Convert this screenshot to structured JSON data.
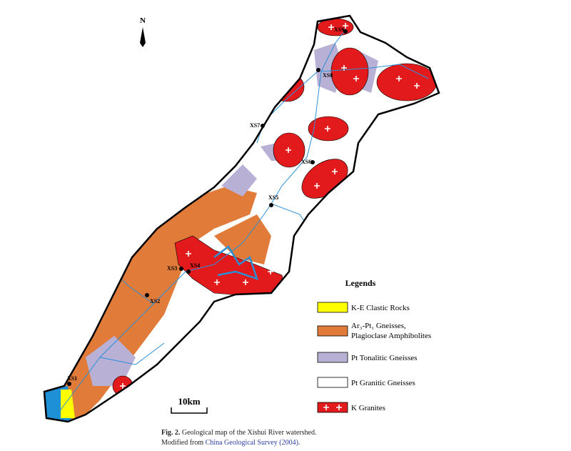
{
  "north": "N",
  "stations": [
    "XS9",
    "XS8",
    "XS7",
    "XS6",
    "XS5",
    "XS4",
    "XS3",
    "XS2",
    "XS1"
  ],
  "scale_bar": "10km",
  "legend": {
    "title": "Legends",
    "items": [
      {
        "label": "K-E Clastic Rocks",
        "color": "#ffff00"
      },
      {
        "label": "Ar₃-Pt₁ Gneisses,",
        "label2": "Plagioclase Amphibolites",
        "color": "#e07b39"
      },
      {
        "label": "Pt Tonalitic Gneisses",
        "color": "#b9b0d6"
      },
      {
        "label": "Pt Granitic Gneisses",
        "color": "#ffffff"
      },
      {
        "label": "K Granites",
        "color": "#e31a1c"
      }
    ]
  },
  "caption": {
    "fig": "Fig. 2.",
    "line1": "Geological map of the Xishui River watershed.",
    "prefix": "Modified from",
    "source": "China Geological Survey (2004)",
    "suffix": "."
  }
}
